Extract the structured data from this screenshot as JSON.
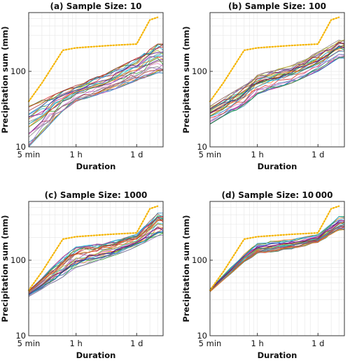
{
  "figure": {
    "shared": {
      "xlabel": "Duration",
      "ylabel": "Precipitation sum (mm)",
      "x_ticks": [
        "5 min",
        "1 h",
        "1 d"
      ],
      "y_ticks": [
        "10",
        "100"
      ]
    }
  },
  "chart_data": [
    {
      "type": "line",
      "title": "(a) Sample Size: 10",
      "xlabel": "Duration",
      "ylabel": "Precipitation sum (mm)",
      "x_scale": "log",
      "y_scale": "log",
      "x_ticks": [
        "5 min",
        "1 h",
        "1 d"
      ],
      "ylim": [
        10,
        600
      ],
      "grid": true,
      "series": [
        {
          "style": "dotted",
          "color": "#f5b400",
          "x": [
            "5 min",
            "10 min",
            "30 min",
            "1 h",
            "6 h",
            "12 h",
            "1 d",
            "2 d",
            "3 d"
          ],
          "values": [
            40,
            70,
            190,
            205,
            220,
            225,
            230,
            480,
            520
          ]
        },
        {
          "style": "band-min",
          "color": "#888888",
          "x": [
            "5 min",
            "30 min",
            "1 h",
            "6 h",
            "1 d",
            "3 d"
          ],
          "values": [
            10,
            30,
            40,
            55,
            75,
            95
          ]
        },
        {
          "style": "band-max",
          "color": "#888888",
          "x": [
            "5 min",
            "30 min",
            "1 h",
            "6 h",
            "1 d",
            "3 d"
          ],
          "values": [
            35,
            55,
            65,
            100,
            150,
            230
          ]
        }
      ]
    },
    {
      "type": "line",
      "title": "(b) Sample Size: 100",
      "xlabel": "Duration",
      "ylabel": "Precipitation sum (mm)",
      "x_scale": "log",
      "y_scale": "log",
      "x_ticks": [
        "5 min",
        "1 h",
        "1 d"
      ],
      "ylim": [
        10,
        600
      ],
      "grid": true,
      "series": [
        {
          "style": "dotted",
          "color": "#f5b400",
          "x": [
            "5 min",
            "10 min",
            "30 min",
            "1 h",
            "6 h",
            "12 h",
            "1 d",
            "2 d",
            "3 d"
          ],
          "values": [
            40,
            70,
            190,
            205,
            220,
            225,
            230,
            480,
            520
          ]
        },
        {
          "style": "band-min",
          "color": "#888888",
          "x": [
            "5 min",
            "30 min",
            "1 h",
            "6 h",
            "1 d",
            "3 d"
          ],
          "values": [
            20,
            35,
            50,
            70,
            100,
            150
          ]
        },
        {
          "style": "band-max",
          "color": "#888888",
          "x": [
            "5 min",
            "30 min",
            "1 h",
            "6 h",
            "1 d",
            "3 d"
          ],
          "values": [
            35,
            65,
            90,
            120,
            180,
            260
          ]
        }
      ]
    },
    {
      "type": "line",
      "title": "(c) Sample Size: 1000",
      "xlabel": "Duration",
      "ylabel": "Precipitation sum (mm)",
      "x_scale": "log",
      "y_scale": "log",
      "x_ticks": [
        "5 min",
        "1 h",
        "1 d"
      ],
      "ylim": [
        10,
        600
      ],
      "grid": true,
      "series": [
        {
          "style": "dotted",
          "color": "#f5b400",
          "x": [
            "5 min",
            "10 min",
            "30 min",
            "1 h",
            "6 h",
            "12 h",
            "1 d",
            "2 d",
            "3 d"
          ],
          "values": [
            40,
            70,
            190,
            205,
            220,
            225,
            230,
            480,
            520
          ]
        },
        {
          "style": "band-min",
          "color": "#888888",
          "x": [
            "5 min",
            "30 min",
            "1 h",
            "6 h",
            "1 d",
            "3 d"
          ],
          "values": [
            33,
            60,
            80,
            110,
            150,
            210
          ]
        },
        {
          "style": "band-max",
          "color": "#888888",
          "x": [
            "5 min",
            "30 min",
            "1 h",
            "6 h",
            "1 d",
            "3 d"
          ],
          "values": [
            40,
            110,
            150,
            175,
            220,
            420
          ]
        }
      ]
    },
    {
      "type": "line",
      "title": "(d) Sample Size: 10 000",
      "xlabel": "Duration",
      "ylabel": "Precipitation sum (mm)",
      "x_scale": "log",
      "y_scale": "log",
      "x_ticks": [
        "5 min",
        "1 h",
        "1 d"
      ],
      "ylim": [
        10,
        600
      ],
      "grid": true,
      "series": [
        {
          "style": "dotted",
          "color": "#f5b400",
          "x": [
            "5 min",
            "10 min",
            "30 min",
            "1 h",
            "6 h",
            "12 h",
            "1 d",
            "2 d",
            "3 d"
          ],
          "values": [
            40,
            70,
            190,
            205,
            220,
            225,
            230,
            480,
            520
          ]
        },
        {
          "style": "band-min",
          "color": "#888888",
          "x": [
            "5 min",
            "30 min",
            "1 h",
            "6 h",
            "1 d",
            "3 d"
          ],
          "values": [
            38,
            95,
            120,
            140,
            170,
            250
          ]
        },
        {
          "style": "band-max",
          "color": "#888888",
          "x": [
            "5 min",
            "30 min",
            "1 h",
            "6 h",
            "1 d",
            "3 d"
          ],
          "values": [
            42,
            120,
            170,
            190,
            220,
            380
          ]
        }
      ]
    }
  ]
}
